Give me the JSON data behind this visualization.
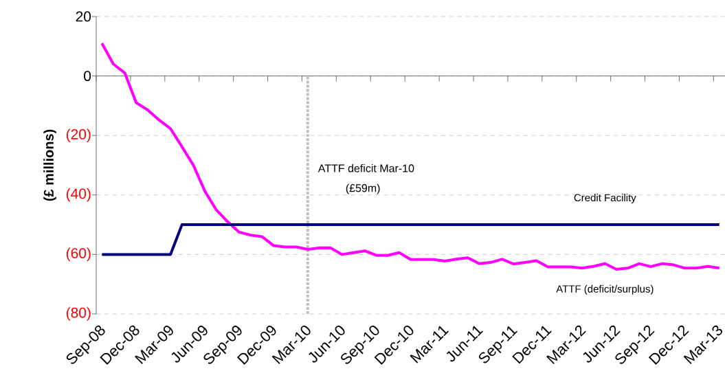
{
  "chart_data": {
    "type": "line",
    "ylabel": "(£ millions)",
    "categories": [
      "Sep-08",
      null,
      null,
      "Dec-08",
      null,
      null,
      "Mar-09",
      null,
      null,
      "Jun-09",
      null,
      null,
      "Sep-09",
      null,
      null,
      "Dec-09",
      null,
      null,
      "Mar-10",
      null,
      null,
      "Jun-10",
      null,
      null,
      "Sep-10",
      null,
      null,
      "Dec-10",
      null,
      null,
      "Mar-11",
      null,
      null,
      "Jun-11",
      null,
      null,
      "Sep-11",
      null,
      null,
      "Dec-11",
      null,
      null,
      "Mar-12",
      null,
      null,
      "Jun-12",
      null,
      null,
      "Sep-12",
      null,
      null,
      "Dec-12",
      null,
      null,
      "Mar-13"
    ],
    "series": [
      {
        "name": "ATTF (deficit/surplus)",
        "color": "#ff00ff",
        "values": [
          11,
          4,
          1,
          -9,
          -11.4,
          -14.8,
          -17.7,
          -23.8,
          -30,
          -38.7,
          -45,
          -49,
          -52.5,
          -53.5,
          -54,
          -57,
          -57.5,
          -57.5,
          -58.3,
          -57.8,
          -57.8,
          -60,
          -59.4,
          -58.8,
          -60.3,
          -60.3,
          -59.4,
          -61.7,
          -61.7,
          -61.7,
          -62.2,
          -61.6,
          -61.1,
          -63.1,
          -62.7,
          -61.6,
          -63.2,
          -62.7,
          -62.1,
          -64.2,
          -64.2,
          -64.2,
          -64.6,
          -64,
          -63.1,
          -65,
          -64.6,
          -63.1,
          -64.1,
          -63.1,
          -63.5,
          -64.6,
          -64.6,
          -64,
          -64.6
        ]
      },
      {
        "name": "Credit Facility",
        "color": "#000080",
        "values": [
          -60,
          -60,
          -60,
          -60,
          -60,
          -60,
          -60,
          -50,
          -50,
          -50,
          -50,
          -50,
          -50,
          -50,
          -50,
          -50,
          -50,
          -50,
          -50,
          -50,
          -50,
          -50,
          -50,
          -50,
          -50,
          -50,
          -50,
          -50,
          -50,
          -50,
          -50,
          -50,
          -50,
          -50,
          -50,
          -50,
          -50,
          -50,
          -50,
          -50,
          -50,
          -50,
          -50,
          -50,
          -50,
          -50,
          -50,
          -50,
          -50,
          -50,
          -50,
          -50,
          -50,
          -50,
          -50
        ]
      }
    ],
    "ylim": [
      -80,
      20
    ],
    "yticks": [
      20,
      0,
      {
        "value": -20,
        "label": "(20)"
      },
      {
        "value": -40,
        "label": "(40)"
      },
      {
        "value": -60,
        "label": "(60)"
      },
      {
        "value": -80,
        "label": "(80)"
      }
    ],
    "grid": "y",
    "marker": "none",
    "line_style": "solid",
    "ref_lines": [
      {
        "axis": "x",
        "value": "Mar-10",
        "color": "#c0c0c0",
        "line_style": "dotted"
      }
    ],
    "annotations": [
      "ATTF deficit Mar-10",
      "(£59m)"
    ]
  }
}
